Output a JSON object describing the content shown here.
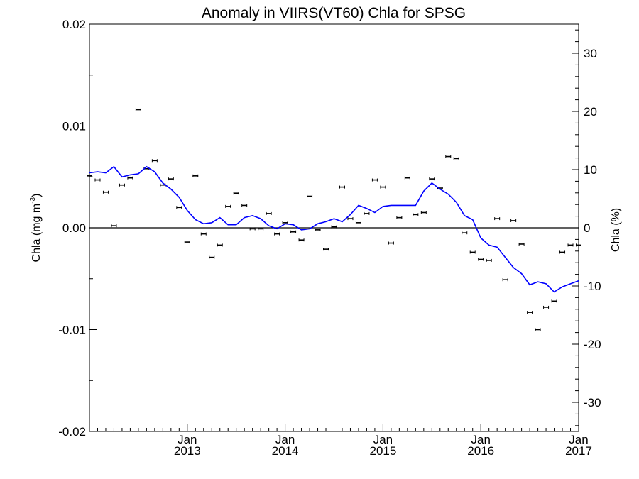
{
  "chart_data": {
    "type": "line",
    "title": "Anomaly in VIIRS(VT60) Chla for SPSG",
    "ylabel_left": "Chla (mg m",
    "ylabel_left_sup": "-3",
    "ylabel_left_close": ")",
    "ylabel_right": "Chla (%)",
    "xlim": [
      "2012-01",
      "2017-01"
    ],
    "ylim_left": [
      -0.02,
      0.02
    ],
    "ylim_right": [
      -35,
      35
    ],
    "x_ticks": [
      {
        "line1": "Jan",
        "line2": "2013",
        "month": 12
      },
      {
        "line1": "Jan",
        "line2": "2014",
        "month": 24
      },
      {
        "line1": "Jan",
        "line2": "2015",
        "month": 36
      },
      {
        "line1": "Jan",
        "line2": "2016",
        "month": 48
      },
      {
        "line1": "Jan",
        "line2": "2017",
        "month": 60
      }
    ],
    "y_ticks_left": [
      {
        "label": "0.02",
        "value": 0.02
      },
      {
        "label": "0.01",
        "value": 0.01
      },
      {
        "label": "0.00",
        "value": 0.0
      },
      {
        "label": "-0.01",
        "value": -0.01
      },
      {
        "label": "-0.02",
        "value": -0.02
      }
    ],
    "y_ticks_right": [
      {
        "label": "30",
        "value": 30
      },
      {
        "label": "20",
        "value": 20
      },
      {
        "label": "10",
        "value": 10
      },
      {
        "label": "0",
        "value": 0
      },
      {
        "label": "-10",
        "value": -10
      },
      {
        "label": "-20",
        "value": -20
      },
      {
        "label": "-30",
        "value": -30
      }
    ],
    "zero_line": true,
    "grid": false,
    "series": [
      {
        "kind": "points_with_error_bars",
        "color": "#000000",
        "x": [
          "2012-01",
          "2012-02",
          "2012-03",
          "2012-04",
          "2012-05",
          "2012-06",
          "2012-07",
          "2012-08",
          "2012-09",
          "2012-10",
          "2012-11",
          "2012-12",
          "2013-01",
          "2013-02",
          "2013-03",
          "2013-04",
          "2013-05",
          "2013-06",
          "2013-07",
          "2013-08",
          "2013-09",
          "2013-10",
          "2013-11",
          "2013-12",
          "2014-01",
          "2014-02",
          "2014-03",
          "2014-04",
          "2014-05",
          "2014-06",
          "2014-07",
          "2014-08",
          "2014-09",
          "2014-10",
          "2014-11",
          "2014-12",
          "2015-01",
          "2015-02",
          "2015-03",
          "2015-04",
          "2015-05",
          "2015-06",
          "2015-07",
          "2015-08",
          "2015-09",
          "2015-10",
          "2015-11",
          "2015-12",
          "2016-01",
          "2016-02",
          "2016-03",
          "2016-04",
          "2016-05",
          "2016-06",
          "2016-07",
          "2016-08",
          "2016-09",
          "2016-10",
          "2016-11",
          "2016-12",
          "2017-01"
        ],
        "values": [
          0.0051,
          0.0047,
          0.0035,
          0.0002,
          0.0042,
          0.0049,
          0.0116,
          0.0058,
          0.0066,
          0.0042,
          0.0048,
          0.002,
          -0.0014,
          0.0051,
          -0.0006,
          -0.0029,
          -0.0017,
          0.0021,
          0.0034,
          0.0022,
          -0.0001,
          -0.0001,
          0.0014,
          -0.0006,
          0.0005,
          -0.0004,
          -0.0012,
          0.0031,
          -0.0002,
          -0.0021,
          0.0001,
          0.004,
          0.0009,
          0.0005,
          0.0014,
          0.0047,
          0.004,
          -0.0015,
          0.001,
          0.0049,
          0.0013,
          0.0015,
          0.0048,
          0.0039,
          0.007,
          0.0068,
          -0.0005,
          -0.0024,
          -0.0031,
          -0.0032,
          0.0009,
          -0.0051,
          0.0007,
          -0.0016,
          -0.0083,
          -0.01,
          -0.0078,
          -0.0072,
          -0.0024,
          -0.0017,
          -0.0017
        ]
      },
      {
        "kind": "line",
        "color": "#0000ff",
        "x": [
          "2012-01",
          "2012-02",
          "2012-03",
          "2012-04",
          "2012-05",
          "2012-06",
          "2012-07",
          "2012-08",
          "2012-09",
          "2012-10",
          "2012-11",
          "2012-12",
          "2013-01",
          "2013-02",
          "2013-03",
          "2013-04",
          "2013-05",
          "2013-06",
          "2013-07",
          "2013-08",
          "2013-09",
          "2013-10",
          "2013-11",
          "2013-12",
          "2014-01",
          "2014-02",
          "2014-03",
          "2014-04",
          "2014-05",
          "2014-06",
          "2014-07",
          "2014-08",
          "2014-09",
          "2014-10",
          "2014-11",
          "2014-12",
          "2015-01",
          "2015-02",
          "2015-03",
          "2015-04",
          "2015-05",
          "2015-06",
          "2015-07",
          "2015-08",
          "2015-09",
          "2015-10",
          "2015-11",
          "2015-12",
          "2016-01",
          "2016-02",
          "2016-03",
          "2016-04",
          "2016-05",
          "2016-06",
          "2016-07",
          "2016-08",
          "2016-09",
          "2016-10",
          "2016-11",
          "2016-12",
          "2017-01"
        ],
        "values": [
          0.0054,
          0.0055,
          0.0054,
          0.006,
          0.005,
          0.0052,
          0.0053,
          0.006,
          0.0055,
          0.0044,
          0.0038,
          0.003,
          0.0017,
          0.0008,
          0.0004,
          0.0005,
          0.001,
          0.0003,
          0.0003,
          0.001,
          0.0012,
          0.0009,
          0.0002,
          -0.0001,
          0.0004,
          0.0003,
          -0.0002,
          -0.0001,
          0.0004,
          0.0006,
          0.0009,
          0.0006,
          0.0013,
          0.0022,
          0.0019,
          0.0015,
          0.0021,
          0.0022,
          0.0022,
          0.0022,
          0.0022,
          0.0036,
          0.0044,
          0.0038,
          0.0033,
          0.0025,
          0.0012,
          0.0008,
          -0.001,
          -0.0017,
          -0.0019,
          -0.0029,
          -0.0039,
          -0.0045,
          -0.0056,
          -0.0053,
          -0.0055,
          -0.0063,
          -0.0058,
          -0.0055,
          -0.0052
        ]
      }
    ]
  }
}
